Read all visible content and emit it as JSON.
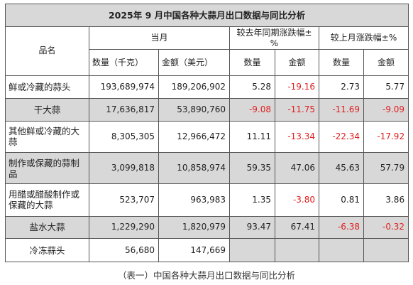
{
  "title": "2025年 9 月中国各种大蒜月出口数据与同比分析",
  "headers": {
    "product": "品名",
    "current_month": "当月",
    "yoy": "较去年同期涨跌幅±%",
    "mom": "较上月涨跌幅±%",
    "qty": "数量（千克）",
    "amount": "金额（美元）",
    "qty_short": "数量",
    "amount_short": "金额"
  },
  "rows": [
    {
      "name": "鲜或冷藏的蒜头",
      "qty": "193,689,974",
      "amount": "189,206,902",
      "yoy_qty": "5.28",
      "yoy_amt": "-19.16",
      "mom_qty": "2.73",
      "mom_amt": "5.77"
    },
    {
      "name": "干大蒜",
      "qty": "17,636,817",
      "amount": "53,890,760",
      "yoy_qty": "-9.08",
      "yoy_amt": "-11.75",
      "mom_qty": "-11.69",
      "mom_amt": "-9.09"
    },
    {
      "name": "其他鲜或冷藏的大蒜",
      "qty": "8,305,305",
      "amount": "12,966,472",
      "yoy_qty": "11.11",
      "yoy_amt": "-13.34",
      "mom_qty": "-22.34",
      "mom_amt": "-17.92"
    },
    {
      "name": "制作或保藏的蒜制品",
      "qty": "3,099,818",
      "amount": "10,858,974",
      "yoy_qty": "59.35",
      "yoy_amt": "47.06",
      "mom_qty": "45.63",
      "mom_amt": "57.79"
    },
    {
      "name": "用醋或醋酸制作或保藏的大蒜",
      "qty": "523,707",
      "amount": "963,983",
      "yoy_qty": "1.35",
      "yoy_amt": "-3.80",
      "mom_qty": "0.81",
      "mom_amt": "3.86"
    },
    {
      "name": "盐水大蒜",
      "qty": "1,229,290",
      "amount": "1,820,979",
      "yoy_qty": "93.47",
      "yoy_amt": "67.41",
      "mom_qty": "-6.38",
      "mom_amt": "-0.32"
    },
    {
      "name": "冷冻蒜头",
      "qty": "56,680",
      "amount": "147,669",
      "yoy_qty": "",
      "yoy_amt": "",
      "mom_qty": "",
      "mom_amt": ""
    }
  ],
  "caption": "（表一）中国各种大蒜月出口数据与同比分析",
  "colors": {
    "shade": "#d8d8d8",
    "negative": "#e02020",
    "border": "#555555"
  }
}
